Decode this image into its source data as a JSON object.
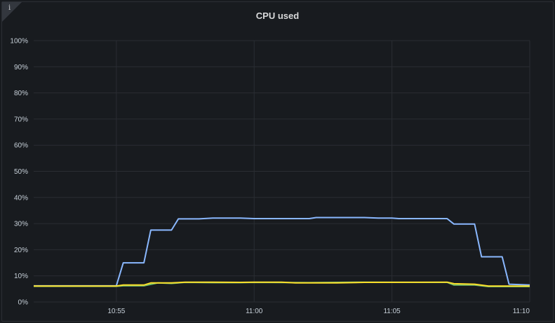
{
  "panel": {
    "title": "CPU used",
    "info_icon": "info-icon"
  },
  "chart_data": {
    "type": "line",
    "title": "CPU used",
    "xlabel": "",
    "ylabel": "",
    "ylim": [
      0,
      100
    ],
    "xlim": [
      "10:52",
      "11:10"
    ],
    "y_ticks": [
      "0%",
      "10%",
      "20%",
      "30%",
      "40%",
      "50%",
      "60%",
      "70%",
      "80%",
      "90%",
      "100%"
    ],
    "x_ticks": [
      "10:55",
      "11:00",
      "11:05",
      "11:10"
    ],
    "grid": true,
    "series": [
      {
        "color": "#8ab8ff",
        "points": [
          [
            "10:52:00",
            6.2
          ],
          [
            "10:55:00",
            6.2
          ],
          [
            "10:55:15",
            15
          ],
          [
            "10:56:00",
            15
          ],
          [
            "10:56:15",
            27.5
          ],
          [
            "10:57:00",
            27.5
          ],
          [
            "10:57:15",
            31.8
          ],
          [
            "10:58:00",
            31.8
          ],
          [
            "10:58:30",
            32.1
          ],
          [
            "10:59:30",
            32.1
          ],
          [
            "11:00:00",
            31.9
          ],
          [
            "11:02:00",
            31.9
          ],
          [
            "11:02:15",
            32.3
          ],
          [
            "11:04:00",
            32.3
          ],
          [
            "11:04:30",
            32.1
          ],
          [
            "11:05:00",
            32.1
          ],
          [
            "11:05:15",
            31.9
          ],
          [
            "11:07:00",
            31.9
          ],
          [
            "11:07:15",
            29.8
          ],
          [
            "11:08:00",
            29.8
          ],
          [
            "11:08:15",
            17.3
          ],
          [
            "11:09:00",
            17.3
          ],
          [
            "11:09:15",
            6.8
          ],
          [
            "11:10:00",
            6.5
          ]
        ]
      },
      {
        "color": "#73bf69",
        "points": [
          [
            "10:52:00",
            6.0
          ],
          [
            "10:55:00",
            6.0
          ],
          [
            "10:55:15",
            6.2
          ],
          [
            "10:56:00",
            6.2
          ],
          [
            "10:56:30",
            7.3
          ],
          [
            "10:57:00",
            7.1
          ],
          [
            "10:57:30",
            7.5
          ],
          [
            "10:58:30",
            7.4
          ],
          [
            "10:59:30",
            7.4
          ],
          [
            "11:00:00",
            7.5
          ],
          [
            "11:02:00",
            7.4
          ],
          [
            "11:04:00",
            7.6
          ],
          [
            "11:06:00",
            7.5
          ],
          [
            "11:07:00",
            7.5
          ],
          [
            "11:07:15",
            6.5
          ],
          [
            "11:08:00",
            6.5
          ],
          [
            "11:08:30",
            5.9
          ],
          [
            "11:10:00",
            5.9
          ]
        ]
      },
      {
        "color": "#fade2a",
        "points": [
          [
            "10:52:00",
            6.1
          ],
          [
            "10:55:00",
            6.1
          ],
          [
            "10:55:15",
            6.5
          ],
          [
            "10:56:00",
            6.5
          ],
          [
            "10:56:15",
            7.3
          ],
          [
            "10:57:00",
            7.3
          ],
          [
            "10:57:30",
            7.6
          ],
          [
            "10:58:30",
            7.6
          ],
          [
            "10:59:30",
            7.5
          ],
          [
            "11:00:00",
            7.6
          ],
          [
            "11:01:00",
            7.6
          ],
          [
            "11:01:30",
            7.3
          ],
          [
            "11:03:00",
            7.3
          ],
          [
            "11:04:00",
            7.5
          ],
          [
            "11:07:00",
            7.6
          ],
          [
            "11:07:15",
            7.0
          ],
          [
            "11:08:00",
            6.8
          ],
          [
            "11:08:30",
            6.1
          ],
          [
            "11:10:00",
            6.1
          ]
        ]
      }
    ]
  }
}
